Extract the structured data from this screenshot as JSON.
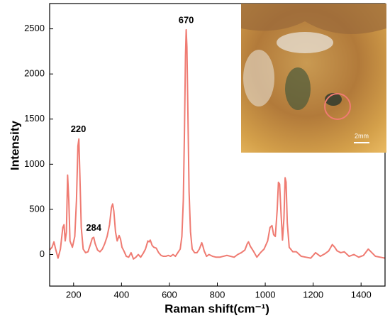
{
  "chart_data": {
    "type": "line",
    "x_label": "Raman shift(cm⁻¹)",
    "y_label": "Intensity",
    "xlim": [
      100,
      1500
    ],
    "xticks": [
      200,
      400,
      600,
      800,
      1000,
      1200,
      1400
    ],
    "ylim": [
      -350,
      2780
    ],
    "yticks": [
      0,
      500,
      1000,
      1500,
      2000,
      2500
    ],
    "x": [
      100,
      110,
      118,
      125,
      135,
      145,
      155,
      160,
      165,
      170,
      175,
      180,
      185,
      195,
      205,
      212,
      218,
      222,
      226,
      232,
      240,
      250,
      260,
      270,
      278,
      284,
      290,
      300,
      310,
      320,
      330,
      340,
      350,
      358,
      363,
      368,
      375,
      382,
      390,
      396,
      402,
      410,
      420,
      430,
      440,
      450,
      460,
      470,
      480,
      490,
      500,
      510,
      515,
      520,
      528,
      535,
      545,
      555,
      565,
      575,
      585,
      595,
      605,
      615,
      625,
      635,
      645,
      652,
      658,
      663,
      667,
      670,
      673,
      677,
      682,
      688,
      695,
      705,
      715,
      725,
      735,
      740,
      745,
      755,
      765,
      780,
      795,
      810,
      825,
      840,
      855,
      870,
      885,
      900,
      915,
      925,
      930,
      938,
      950,
      965,
      980,
      995,
      1010,
      1020,
      1028,
      1035,
      1042,
      1050,
      1055,
      1060,
      1066,
      1072,
      1078,
      1083,
      1087,
      1092,
      1100,
      1115,
      1130,
      1150,
      1170,
      1190,
      1210,
      1230,
      1250,
      1265,
      1280,
      1290,
      1300,
      1315,
      1330,
      1350,
      1370,
      1390,
      1410,
      1430,
      1445,
      1460,
      1480,
      1500
    ],
    "series": [
      {
        "color": "#ef7b72",
        "values": [
          50,
          80,
          140,
          60,
          -40,
          60,
          300,
          330,
          150,
          250,
          880,
          600,
          150,
          80,
          200,
          600,
          1200,
          1280,
          900,
          300,
          60,
          20,
          30,
          110,
          180,
          190,
          120,
          50,
          30,
          60,
          120,
          200,
          330,
          520,
          560,
          480,
          250,
          150,
          210,
          170,
          80,
          40,
          -20,
          -30,
          20,
          -50,
          -30,
          0,
          -30,
          10,
          60,
          150,
          140,
          160,
          100,
          80,
          70,
          20,
          -10,
          -20,
          -20,
          -10,
          -20,
          0,
          -20,
          20,
          60,
          200,
          600,
          1400,
          2200,
          2490,
          2300,
          1600,
          700,
          250,
          60,
          20,
          20,
          60,
          130,
          90,
          40,
          -20,
          0,
          -20,
          -30,
          -30,
          -20,
          -10,
          -20,
          -30,
          0,
          20,
          50,
          120,
          140,
          90,
          40,
          -30,
          20,
          60,
          150,
          300,
          320,
          220,
          200,
          500,
          800,
          780,
          450,
          160,
          400,
          850,
          800,
          350,
          80,
          30,
          30,
          -20,
          -30,
          -40,
          20,
          -20,
          10,
          40,
          110,
          80,
          40,
          20,
          30,
          -20,
          0,
          -30,
          -10,
          60,
          20,
          -20,
          -30,
          -40
        ]
      }
    ],
    "annotations": [
      {
        "text": "220",
        "x": 220,
        "y": 1280
      },
      {
        "text": "284",
        "x": 284,
        "y": 190
      },
      {
        "text": "670",
        "x": 670,
        "y": 2490
      }
    ],
    "inset": {
      "scale_label": "2mm"
    }
  }
}
